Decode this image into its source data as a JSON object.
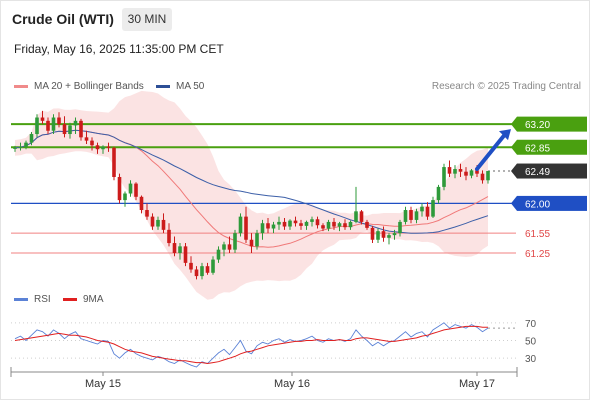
{
  "header": {
    "title": "Crude Oil (WTI)",
    "timeframe": "30 MIN",
    "datetime": "Friday, May 16, 2025 11:35:00 PM CET"
  },
  "legend": {
    "ma20_label": "MA 20 + Bollinger Bands",
    "ma50_label": "MA 50",
    "credit": "Research © 2025 Trading Central"
  },
  "rsi_legend": {
    "rsi_label": "RSI",
    "ma_label": "9MA"
  },
  "colors": {
    "up": "#2e9a3a",
    "down": "#cc1b1b",
    "band_fill": "#fadada",
    "ma20": "#f07878",
    "ma50": "#3c5fa8",
    "resistance": "#4aa010",
    "pivot": "#1f4fc4",
    "support": "#f08080",
    "current": "#333333",
    "rsi": "#5b82d6",
    "rsi_ma": "#e02020"
  },
  "chart_data": [
    {
      "type": "candlestick",
      "x_ticks": [
        "May 15",
        "May 16",
        "May 17"
      ],
      "ylim": [
        60.75,
        63.55
      ],
      "levels": [
        {
          "value": 63.2,
          "label": "63.20",
          "kind": "resistance"
        },
        {
          "value": 62.85,
          "label": "62.85",
          "kind": "resistance"
        },
        {
          "value": 62.49,
          "label": "62.49",
          "kind": "current"
        },
        {
          "value": 62.0,
          "label": "62.00",
          "kind": "pivot"
        },
        {
          "value": 61.55,
          "label": "61.55",
          "kind": "support"
        },
        {
          "value": 61.25,
          "label": "61.25",
          "kind": "support"
        }
      ],
      "forecast_arrow": {
        "from": 62.49,
        "to": 63.2
      },
      "candles": [
        [
          62.83,
          62.87,
          62.78,
          62.84
        ],
        [
          62.84,
          62.92,
          62.8,
          62.86
        ],
        [
          62.86,
          62.95,
          62.82,
          62.92
        ],
        [
          62.92,
          63.08,
          62.88,
          63.05
        ],
        [
          63.05,
          63.35,
          63.0,
          63.3
        ],
        [
          63.3,
          63.4,
          63.2,
          63.25
        ],
        [
          63.25,
          63.3,
          63.05,
          63.1
        ],
        [
          63.1,
          63.35,
          63.05,
          63.3
        ],
        [
          63.3,
          63.38,
          63.15,
          63.2
        ],
        [
          63.2,
          63.32,
          63.0,
          63.05
        ],
        [
          63.05,
          63.22,
          62.98,
          63.18
        ],
        [
          63.18,
          63.3,
          63.05,
          63.25
        ],
        [
          63.25,
          63.28,
          62.95,
          63.0
        ],
        [
          63.0,
          63.1,
          62.9,
          62.95
        ],
        [
          62.95,
          63.0,
          62.8,
          62.88
        ],
        [
          62.88,
          62.92,
          62.75,
          62.82
        ],
        [
          62.82,
          62.88,
          62.75,
          62.86
        ],
        [
          62.86,
          62.92,
          62.78,
          62.84
        ],
        [
          62.84,
          62.86,
          62.35,
          62.4
        ],
        [
          62.4,
          62.45,
          62.0,
          62.05
        ],
        [
          62.05,
          62.18,
          61.95,
          62.15
        ],
        [
          62.15,
          62.35,
          62.1,
          62.3
        ],
        [
          62.3,
          62.32,
          62.05,
          62.1
        ],
        [
          62.1,
          62.12,
          61.85,
          61.9
        ],
        [
          61.9,
          62.0,
          61.75,
          61.8
        ],
        [
          61.8,
          61.85,
          61.6,
          61.65
        ],
        [
          61.65,
          61.8,
          61.6,
          61.75
        ],
        [
          61.75,
          61.85,
          61.55,
          61.6
        ],
        [
          61.6,
          61.7,
          61.35,
          61.4
        ],
        [
          61.4,
          61.5,
          61.2,
          61.25
        ],
        [
          61.25,
          61.4,
          61.15,
          61.35
        ],
        [
          61.35,
          61.4,
          61.05,
          61.1
        ],
        [
          61.1,
          61.2,
          60.95,
          61.0
        ],
        [
          61.0,
          61.05,
          60.85,
          60.9
        ],
        [
          60.9,
          61.1,
          60.85,
          61.05
        ],
        [
          61.05,
          61.1,
          60.92,
          60.95
        ],
        [
          60.95,
          61.2,
          60.92,
          61.15
        ],
        [
          61.15,
          61.35,
          61.1,
          61.3
        ],
        [
          61.3,
          61.42,
          61.2,
          61.38
        ],
        [
          61.38,
          61.5,
          61.25,
          61.3
        ],
        [
          61.3,
          61.6,
          61.25,
          61.55
        ],
        [
          61.55,
          61.85,
          61.5,
          61.8
        ],
        [
          61.8,
          61.95,
          61.4,
          61.45
        ],
        [
          61.45,
          61.55,
          61.25,
          61.35
        ],
        [
          61.35,
          61.6,
          61.3,
          61.55
        ],
        [
          61.55,
          61.75,
          61.45,
          61.7
        ],
        [
          61.7,
          61.78,
          61.55,
          61.62
        ],
        [
          61.62,
          61.72,
          61.55,
          61.68
        ],
        [
          61.68,
          61.8,
          61.6,
          61.72
        ],
        [
          61.72,
          61.78,
          61.6,
          61.65
        ],
        [
          61.65,
          61.76,
          61.6,
          61.74
        ],
        [
          61.74,
          61.8,
          61.65,
          61.7
        ],
        [
          61.7,
          61.75,
          61.6,
          61.66
        ],
        [
          61.66,
          61.74,
          61.6,
          61.72
        ],
        [
          61.72,
          61.8,
          61.65,
          61.76
        ],
        [
          61.76,
          61.8,
          61.62,
          61.67
        ],
        [
          61.67,
          61.7,
          61.58,
          61.62
        ],
        [
          61.62,
          61.75,
          61.58,
          61.72
        ],
        [
          61.72,
          61.78,
          61.6,
          61.65
        ],
        [
          61.65,
          61.72,
          61.58,
          61.7
        ],
        [
          61.7,
          61.76,
          61.6,
          61.64
        ],
        [
          61.64,
          61.74,
          61.6,
          61.72
        ],
        [
          61.72,
          62.25,
          61.7,
          61.88
        ],
        [
          61.88,
          61.9,
          61.68,
          61.72
        ],
        [
          61.72,
          61.75,
          61.6,
          61.63
        ],
        [
          61.63,
          61.66,
          61.4,
          61.45
        ],
        [
          61.45,
          61.62,
          61.4,
          61.58
        ],
        [
          61.58,
          61.65,
          61.42,
          61.48
        ],
        [
          61.48,
          61.55,
          61.38,
          61.52
        ],
        [
          61.52,
          61.6,
          61.45,
          61.55
        ],
        [
          61.55,
          61.75,
          61.5,
          61.72
        ],
        [
          61.72,
          61.95,
          61.68,
          61.9
        ],
        [
          61.9,
          61.95,
          61.7,
          61.75
        ],
        [
          61.75,
          61.92,
          61.7,
          61.88
        ],
        [
          61.88,
          62.0,
          61.8,
          61.95
        ],
        [
          61.95,
          62.02,
          61.75,
          61.8
        ],
        [
          61.8,
          62.1,
          61.78,
          62.05
        ],
        [
          62.05,
          62.28,
          62.0,
          62.25
        ],
        [
          62.25,
          62.6,
          62.2,
          62.55
        ],
        [
          62.55,
          62.65,
          62.4,
          62.45
        ],
        [
          62.45,
          62.58,
          62.38,
          62.52
        ],
        [
          62.52,
          62.6,
          62.4,
          62.48
        ],
        [
          62.48,
          62.55,
          62.35,
          62.42
        ],
        [
          62.42,
          62.52,
          62.38,
          62.5
        ],
        [
          62.5,
          62.58,
          62.4,
          62.45
        ],
        [
          62.45,
          62.5,
          62.3,
          62.35
        ],
        [
          62.35,
          62.49,
          62.3,
          62.49
        ]
      ]
    },
    {
      "type": "line",
      "name": "RSI",
      "y_ticks": [
        70,
        50,
        30
      ],
      "rsi": [
        52,
        55,
        50,
        56,
        62,
        60,
        55,
        62,
        58,
        52,
        57,
        60,
        52,
        50,
        48,
        46,
        50,
        49,
        35,
        30,
        36,
        40,
        35,
        32,
        30,
        28,
        32,
        30,
        26,
        24,
        28,
        25,
        22,
        20,
        26,
        24,
        30,
        36,
        40,
        34,
        42,
        50,
        38,
        35,
        44,
        48,
        46,
        50,
        52,
        48,
        51,
        49,
        50,
        52,
        55,
        50,
        48,
        52,
        50,
        51,
        49,
        52,
        62,
        55,
        50,
        44,
        48,
        44,
        48,
        50,
        55,
        60,
        54,
        58,
        60,
        54,
        62,
        66,
        70,
        64,
        68,
        66,
        64,
        68,
        65,
        60,
        64
      ],
      "rsi_ma": [
        50,
        51,
        52,
        53,
        54,
        55,
        56,
        57,
        58,
        57,
        56,
        56,
        55,
        54,
        52,
        50,
        49,
        48,
        46,
        43,
        40,
        38,
        37,
        36,
        34,
        32,
        31,
        30,
        29,
        28,
        27,
        27,
        26,
        25,
        25,
        24,
        25,
        26,
        28,
        30,
        32,
        35,
        37,
        38,
        40,
        42,
        44,
        45,
        46,
        47,
        48,
        49,
        49,
        50,
        50,
        51,
        50,
        50,
        50,
        51,
        50,
        50,
        52,
        53,
        53,
        52,
        51,
        50,
        49,
        49,
        50,
        51,
        52,
        53,
        55,
        56,
        58,
        60,
        62,
        63,
        64,
        65,
        66,
        66,
        66,
        65,
        65
      ]
    }
  ]
}
